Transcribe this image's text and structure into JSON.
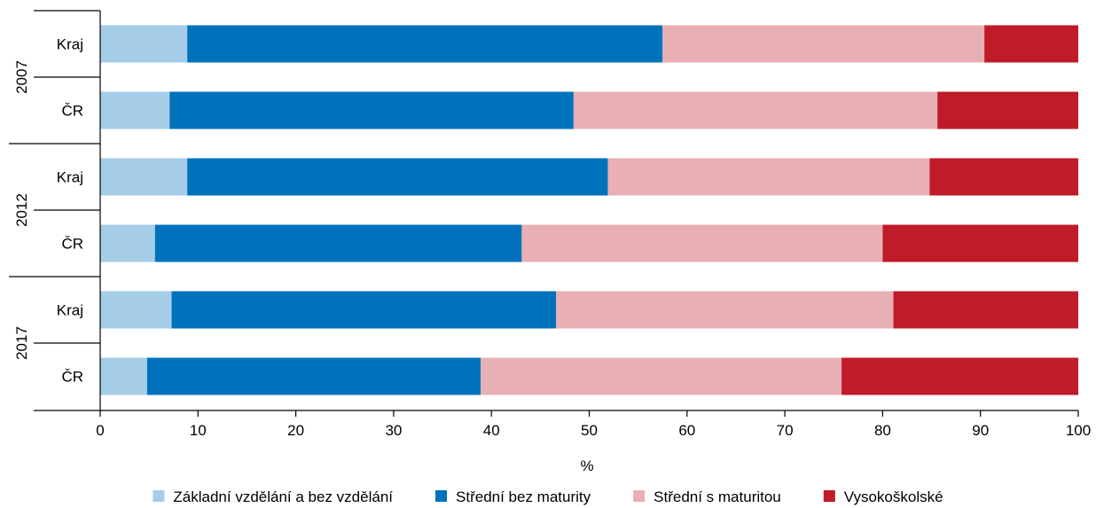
{
  "chart_data": {
    "type": "bar",
    "orientation": "horizontal",
    "stacked": true,
    "groups": [
      {
        "label": "2007",
        "rows": [
          {
            "label": "Kraj",
            "values": [
              8.9,
              48.6,
              32.9,
              9.6
            ]
          },
          {
            "label": "ČR",
            "values": [
              7.1,
              41.3,
              37.2,
              14.4
            ]
          }
        ]
      },
      {
        "label": "2012",
        "rows": [
          {
            "label": "Kraj",
            "values": [
              8.9,
              43.0,
              32.9,
              15.2
            ]
          },
          {
            "label": "ČR",
            "values": [
              5.6,
              37.5,
              36.9,
              20.0
            ]
          }
        ]
      },
      {
        "label": "2017",
        "rows": [
          {
            "label": "Kraj",
            "values": [
              7.3,
              39.3,
              34.5,
              18.9
            ]
          },
          {
            "label": "ČR",
            "values": [
              4.8,
              34.1,
              36.9,
              24.2
            ]
          }
        ]
      }
    ],
    "series": [
      {
        "name": "Základní vzdělání a bez vzdělání",
        "color": "#a6cde8"
      },
      {
        "name": "Střední bez maturity",
        "color": "#0072bc"
      },
      {
        "name": "Střední s maturitou",
        "color": "#e8b0b4"
      },
      {
        "name": "Vysokoškolské",
        "color": "#c01b28"
      }
    ],
    "xlabel": "%",
    "xlim": [
      0,
      100
    ],
    "xticks": [
      "0",
      "10",
      "20",
      "30",
      "40",
      "50",
      "60",
      "70",
      "80",
      "90",
      "100"
    ],
    "grid": false,
    "legend_position": "bottom"
  }
}
